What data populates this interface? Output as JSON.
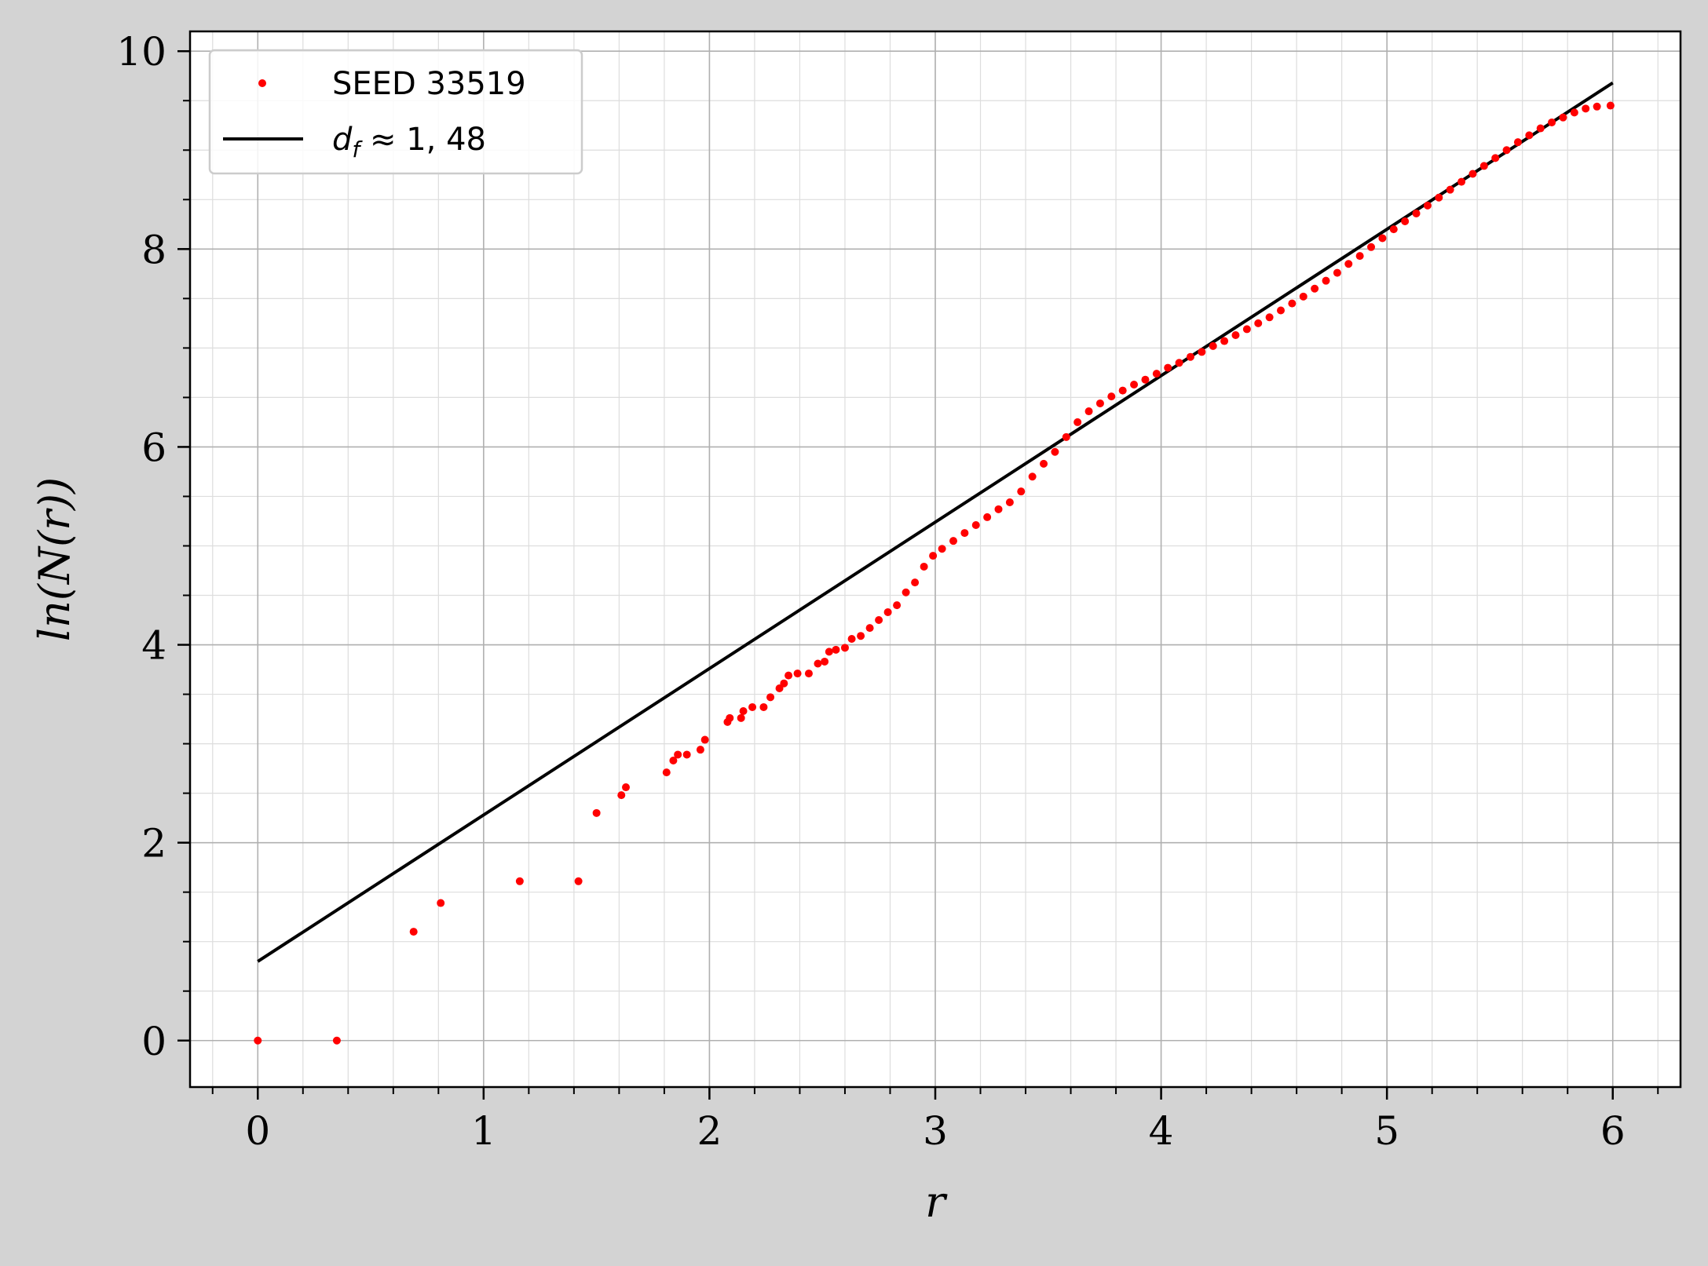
{
  "chart_data": {
    "type": "scatter",
    "xlabel": "r",
    "ylabel": "ln(N(r))",
    "xlim": [
      -0.3,
      6.3
    ],
    "ylim": [
      -0.47,
      10.2
    ],
    "xticks": [
      0,
      1,
      2,
      3,
      4,
      5,
      6
    ],
    "yticks": [
      0,
      2,
      4,
      6,
      8,
      10
    ],
    "x_minor_step": 0.2,
    "y_minor_step": 0.5,
    "grid": true,
    "legend_position": "top-left",
    "colors": {
      "points": "#ff0000",
      "fit": "#000000",
      "background": "#d3d3d3",
      "plot_area": "#ffffff"
    },
    "series": [
      {
        "name": "SEED 33519",
        "kind": "scatter",
        "points": [
          [
            0.0,
            0.0
          ],
          [
            0.35,
            0.0
          ],
          [
            0.69,
            1.1
          ],
          [
            0.81,
            1.39
          ],
          [
            1.16,
            1.61
          ],
          [
            1.42,
            1.61
          ],
          [
            1.5,
            2.3
          ],
          [
            1.61,
            2.48
          ],
          [
            1.63,
            2.56
          ],
          [
            1.81,
            2.71
          ],
          [
            1.84,
            2.83
          ],
          [
            1.86,
            2.89
          ],
          [
            1.9,
            2.89
          ],
          [
            1.96,
            2.94
          ],
          [
            1.98,
            3.04
          ],
          [
            2.08,
            3.22
          ],
          [
            2.09,
            3.26
          ],
          [
            2.14,
            3.26
          ],
          [
            2.15,
            3.33
          ],
          [
            2.19,
            3.37
          ],
          [
            2.24,
            3.37
          ],
          [
            2.27,
            3.47
          ],
          [
            2.31,
            3.56
          ],
          [
            2.33,
            3.61
          ],
          [
            2.35,
            3.69
          ],
          [
            2.39,
            3.71
          ],
          [
            2.44,
            3.71
          ],
          [
            2.48,
            3.81
          ],
          [
            2.51,
            3.83
          ],
          [
            2.53,
            3.93
          ],
          [
            2.56,
            3.95
          ],
          [
            2.6,
            3.97
          ],
          [
            2.63,
            4.06
          ],
          [
            2.67,
            4.09
          ],
          [
            2.71,
            4.17
          ],
          [
            2.75,
            4.25
          ],
          [
            2.79,
            4.33
          ],
          [
            2.83,
            4.4
          ],
          [
            2.87,
            4.53
          ],
          [
            2.91,
            4.63
          ],
          [
            2.95,
            4.79
          ],
          [
            2.99,
            4.9
          ],
          [
            3.03,
            4.97
          ],
          [
            3.08,
            5.05
          ],
          [
            3.13,
            5.13
          ],
          [
            3.18,
            5.21
          ],
          [
            3.23,
            5.29
          ],
          [
            3.28,
            5.37
          ],
          [
            3.33,
            5.44
          ],
          [
            3.38,
            5.55
          ],
          [
            3.43,
            5.7
          ],
          [
            3.48,
            5.83
          ],
          [
            3.53,
            5.95
          ],
          [
            3.58,
            6.1
          ],
          [
            3.63,
            6.25
          ],
          [
            3.68,
            6.36
          ],
          [
            3.73,
            6.44
          ],
          [
            3.78,
            6.51
          ],
          [
            3.83,
            6.57
          ],
          [
            3.88,
            6.63
          ],
          [
            3.93,
            6.68
          ],
          [
            3.98,
            6.74
          ],
          [
            4.03,
            6.8
          ],
          [
            4.08,
            6.85
          ],
          [
            4.13,
            6.91
          ],
          [
            4.18,
            6.96
          ],
          [
            4.23,
            7.02
          ],
          [
            4.28,
            7.07
          ],
          [
            4.33,
            7.13
          ],
          [
            4.38,
            7.19
          ],
          [
            4.43,
            7.25
          ],
          [
            4.48,
            7.31
          ],
          [
            4.53,
            7.38
          ],
          [
            4.58,
            7.45
          ],
          [
            4.63,
            7.52
          ],
          [
            4.68,
            7.6
          ],
          [
            4.73,
            7.68
          ],
          [
            4.78,
            7.76
          ],
          [
            4.83,
            7.85
          ],
          [
            4.88,
            7.93
          ],
          [
            4.93,
            8.02
          ],
          [
            4.98,
            8.11
          ],
          [
            5.03,
            8.2
          ],
          [
            5.08,
            8.28
          ],
          [
            5.13,
            8.36
          ],
          [
            5.18,
            8.44
          ],
          [
            5.23,
            8.52
          ],
          [
            5.28,
            8.6
          ],
          [
            5.33,
            8.68
          ],
          [
            5.38,
            8.76
          ],
          [
            5.43,
            8.84
          ],
          [
            5.48,
            8.92
          ],
          [
            5.53,
            9.0
          ],
          [
            5.58,
            9.08
          ],
          [
            5.63,
            9.15
          ],
          [
            5.68,
            9.22
          ],
          [
            5.73,
            9.28
          ],
          [
            5.78,
            9.33
          ],
          [
            5.83,
            9.38
          ],
          [
            5.88,
            9.42
          ],
          [
            5.93,
            9.44
          ],
          [
            5.99,
            9.45
          ]
        ]
      },
      {
        "name": "d_f ≈ 1,48",
        "kind": "line",
        "points": [
          [
            0.0,
            0.8
          ],
          [
            6.0,
            9.68
          ]
        ]
      }
    ]
  },
  "legend": [
    {
      "label": "SEED 33519"
    },
    {
      "label_main": "d",
      "label_sub": "f",
      "label_rest": " ≈ 1, 48"
    }
  ]
}
